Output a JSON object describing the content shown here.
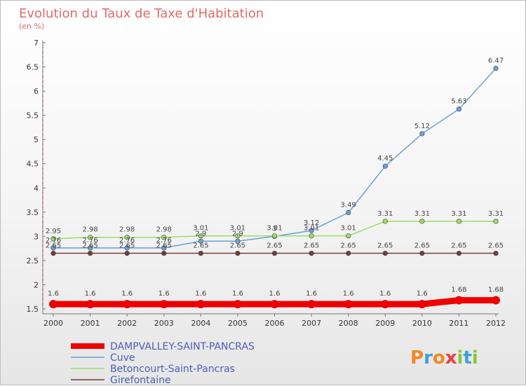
{
  "chart_data": {
    "type": "line",
    "title": "Evolution du Taux de Taxe d'Habitation",
    "subtitle": "(en %)",
    "x": [
      "2000",
      "2001",
      "2002",
      "2003",
      "2004",
      "2005",
      "2006",
      "2007",
      "2008",
      "2009",
      "2010",
      "2011",
      "2012"
    ],
    "ylim": [
      1.5,
      7
    ],
    "yticks": [
      "1.5",
      "2",
      "2.5",
      "3",
      "3.5",
      "4",
      "4.5",
      "5",
      "5.5",
      "6",
      "6.5",
      "7"
    ],
    "series": [
      {
        "name": "DAMPVALLEY-SAINT-PANCRAS",
        "color": "#ee0000",
        "values": [
          1.6,
          1.6,
          1.6,
          1.6,
          1.6,
          1.6,
          1.6,
          1.6,
          1.6,
          1.6,
          1.6,
          1.68,
          1.68
        ],
        "labels": [
          "1.6",
          "1.6",
          "1.6",
          "1.6",
          "1.6",
          "1.6",
          "1.6",
          "1.6",
          "1.6",
          "1.6",
          "1.6",
          "1.68",
          "1.68"
        ]
      },
      {
        "name": "Cuve",
        "color": "#6aa0d8",
        "values": [
          2.76,
          2.76,
          2.76,
          2.76,
          2.9,
          2.9,
          3.0,
          3.12,
          3.49,
          4.45,
          5.12,
          5.63,
          6.47
        ],
        "labels": [
          "2.76",
          "2.76",
          "2.76",
          "2.76",
          "2.9",
          "2.9",
          "3",
          "3.12",
          "3.49",
          "4.45",
          "5.12",
          "5.63",
          "6.47"
        ]
      },
      {
        "name": "Betoncourt-Saint-Pancras",
        "color": "#99dd66",
        "values": [
          2.95,
          2.98,
          2.98,
          2.98,
          3.01,
          3.01,
          3.01,
          3.01,
          3.01,
          3.31,
          3.31,
          3.31,
          3.31
        ],
        "labels": [
          "2.95",
          "2.98",
          "2.98",
          "2.98",
          "3.01",
          "3.01",
          "3.01",
          "3.01",
          "3.01",
          "3.31",
          "3.31",
          "3.31",
          "3.31"
        ]
      },
      {
        "name": "Girefontaine",
        "color": "#7a3a3a",
        "values": [
          2.65,
          2.65,
          2.65,
          2.65,
          2.65,
          2.65,
          2.65,
          2.65,
          2.65,
          2.65,
          2.65,
          2.65,
          2.65
        ],
        "labels": [
          "2.65",
          "2.65",
          "2.65",
          "2.65",
          "2.65",
          "2.65",
          "2.65",
          "2.65",
          "2.65",
          "2.65",
          "2.65",
          "2.65",
          "2.65"
        ]
      }
    ]
  },
  "logo": {
    "letters": [
      "P",
      "r",
      "o",
      "x",
      "i",
      "t",
      "i"
    ]
  }
}
